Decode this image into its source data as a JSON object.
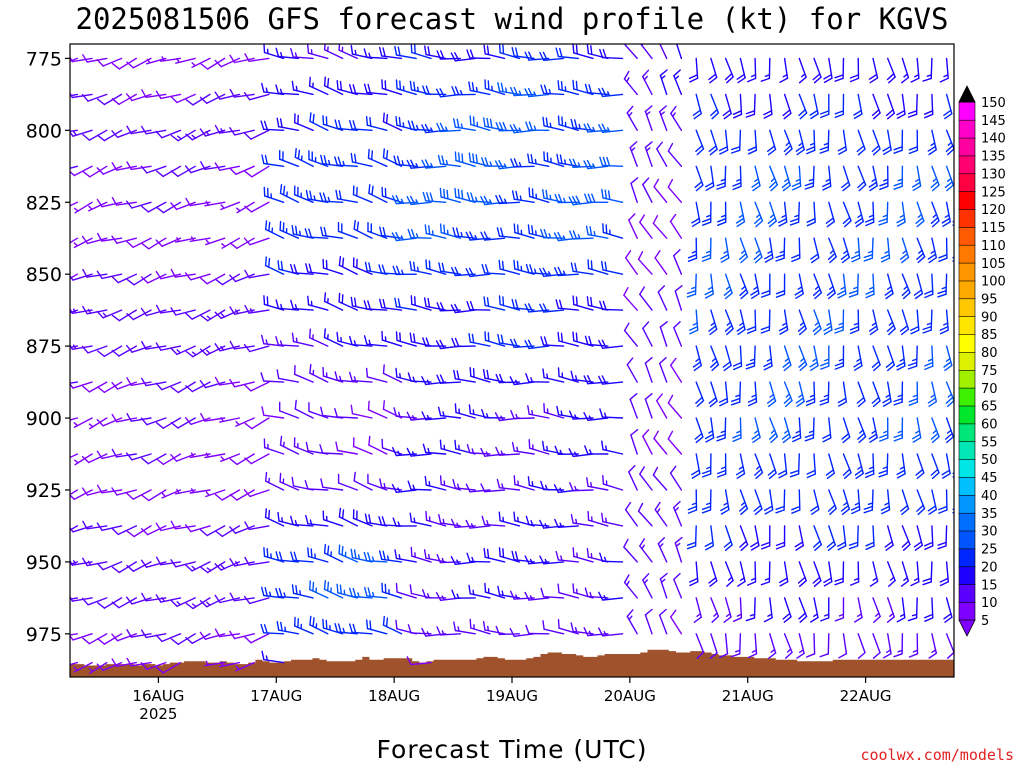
{
  "title": "2025081506 GFS forecast wind profile (kt) for KGVS",
  "xlabel": "Forecast Time (UTC)",
  "credit": "coolwx.com/models",
  "chart_data": {
    "type": "wind_barb_profile",
    "title": "2025081506 GFS forecast wind profile (kt) for KGVS",
    "xlabel": "Forecast Time (UTC)",
    "ylabel": "",
    "y_axis": {
      "scale": "pressure",
      "inverted": true,
      "ylim": [
        770,
        990
      ],
      "ticks": [
        775,
        800,
        825,
        850,
        875,
        900,
        925,
        950,
        975
      ]
    },
    "x_axis": {
      "ticks": [
        {
          "label": "16AUG",
          "sub": "2025",
          "hour": 18
        },
        {
          "label": "17AUG",
          "sub": "",
          "hour": 42
        },
        {
          "label": "18AUG",
          "sub": "",
          "hour": 66
        },
        {
          "label": "19AUG",
          "sub": "",
          "hour": 90
        },
        {
          "label": "20AUG",
          "sub": "",
          "hour": 114
        },
        {
          "label": "21AUG",
          "sub": "",
          "hour": 138
        },
        {
          "label": "22AUG",
          "sub": "",
          "hour": 162
        }
      ],
      "xlim": [
        0,
        180
      ]
    },
    "colorbar": {
      "label_values": [
        5,
        10,
        15,
        20,
        25,
        30,
        35,
        40,
        45,
        50,
        55,
        60,
        65,
        70,
        75,
        80,
        85,
        90,
        95,
        100,
        105,
        110,
        115,
        120,
        125,
        130,
        135,
        140,
        145,
        150
      ],
      "colors": [
        "#7f00ff",
        "#5a00ff",
        "#1e00ff",
        "#0026ff",
        "#0055ff",
        "#006eff",
        "#0095ff",
        "#00c0ff",
        "#00e6e6",
        "#00e6b4",
        "#00e678",
        "#00e62d",
        "#3cf000",
        "#a0f000",
        "#dcf000",
        "#ffff00",
        "#ffe600",
        "#ffc800",
        "#ffaa00",
        "#ff9600",
        "#ff7800",
        "#ff5a00",
        "#ff3200",
        "#ff0000",
        "#ff0040",
        "#ff0070",
        "#ff00a0",
        "#ff00c8",
        "#ff00ff"
      ]
    },
    "terrain": {
      "color": "#a0522d",
      "surface_pressure": [
        985.5,
        985.5,
        986,
        986,
        986,
        985.5,
        985.5,
        985.5,
        985.5,
        986,
        985.5,
        985.5,
        986,
        985.5,
        985,
        985,
        984.5,
        984.5,
        984.5,
        985,
        985,
        984.5,
        985,
        985.5,
        985.5,
        985,
        984,
        984.5,
        985,
        985,
        984.5,
        984,
        984,
        984,
        983.5,
        984,
        984.5,
        984.5,
        984.5,
        984.5,
        984,
        983,
        984,
        984,
        983.5,
        983.5,
        983.5,
        983.5,
        984.5,
        985,
        984.5,
        984,
        984,
        984,
        984,
        984,
        984,
        983.5,
        983,
        983,
        983.5,
        984,
        984,
        984,
        983.5,
        983,
        982,
        981.5,
        981.5,
        982,
        982,
        982.5,
        983,
        983,
        982.5,
        982,
        982,
        982,
        982,
        982,
        981.5,
        980.5,
        980.5,
        980.5,
        981,
        981.5,
        981.5,
        981,
        981,
        981.5,
        982,
        982.5,
        982.5,
        983,
        983,
        983,
        983.5,
        983.5,
        983.5,
        984,
        984,
        984,
        984.5,
        984.5,
        984.5,
        984.5,
        984.5,
        984,
        984,
        984,
        984,
        984,
        984,
        984,
        984,
        984,
        984,
        984,
        984,
        984,
        984,
        984,
        984,
        984
      ]
    },
    "profiles": {
      "levels": [
        775,
        787.5,
        800,
        812.5,
        825,
        837.5,
        850,
        862.5,
        875,
        887.5,
        900,
        912.5,
        925,
        937.5,
        950,
        962.5,
        975,
        985
      ],
      "note": "Wind barbs drawn every 3 forecast hours; speed (kt) and meteorological direction (deg).",
      "segments": [
        {
          "hours": [
            0,
            39
          ],
          "dir": 250,
          "speed": [
            8,
            10,
            12,
            10,
            9,
            8,
            10,
            12,
            12,
            10,
            9,
            9,
            8,
            10,
            12,
            12,
            10,
            8
          ]
        },
        {
          "hours": [
            42,
            66
          ],
          "dir": 285,
          "speed": [
            16,
            18,
            20,
            22,
            22,
            22,
            20,
            18,
            15,
            12,
            10,
            11,
            12,
            18,
            24,
            25,
            22,
            15
          ]
        },
        {
          "hours": [
            69,
            111
          ],
          "dir": 275,
          "speed": [
            20,
            24,
            26,
            26,
            26,
            24,
            22,
            20,
            20,
            18,
            15,
            15,
            14,
            15,
            16,
            14,
            12,
            8
          ]
        },
        {
          "hours": [
            114,
            123
          ],
          "dir": 330,
          "speed": [
            14,
            14,
            13,
            12,
            11,
            10,
            10,
            10,
            10,
            10,
            11,
            11,
            12,
            12,
            12,
            12,
            11,
            8
          ]
        },
        {
          "hours": [
            126,
            180
          ],
          "dir": 170,
          "speed": [
            18,
            20,
            22,
            24,
            24,
            24,
            24,
            24,
            24,
            24,
            24,
            22,
            22,
            20,
            18,
            16,
            12,
            8
          ]
        }
      ]
    }
  }
}
